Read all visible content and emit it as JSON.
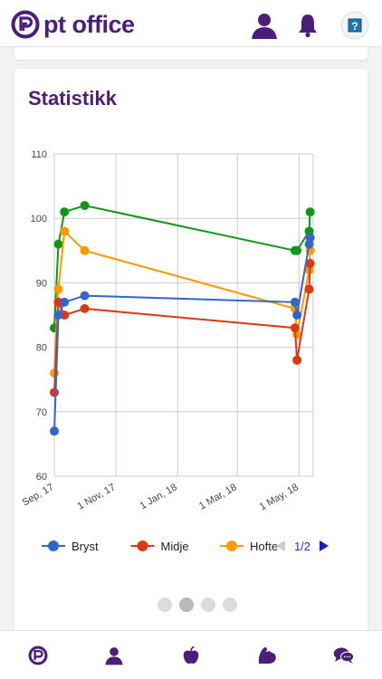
{
  "app": {
    "name": "pt office"
  },
  "icons": {
    "logo": "pt-office-logo-icon",
    "profile": "user-icon",
    "notifications": "bell-icon",
    "help": "help-icon"
  },
  "card": {
    "title": "Statistikk"
  },
  "chart_data": {
    "type": "line",
    "ylim": [
      60,
      110
    ],
    "yticks": [
      60,
      70,
      80,
      90,
      100,
      110
    ],
    "xticks": [
      "Sep, 17",
      "1 Nov, 17",
      "1 Jan, 18",
      "1 Mar, 18",
      "1 May, 18"
    ],
    "series": [
      {
        "name": "Bryst",
        "color": "#3366cc",
        "x": [
          "2017-09-01",
          "2017-09-05",
          "2017-09-11",
          "2017-10-01",
          "2018-04-27",
          "2018-04-29",
          "2018-05-11",
          "2018-05-12"
        ],
        "y": [
          67,
          85,
          87,
          88,
          87,
          85,
          96,
          97
        ]
      },
      {
        "name": "Midje",
        "color": "#dc3912",
        "x": [
          "2017-09-01",
          "2017-09-05",
          "2017-09-11",
          "2017-10-01",
          "2018-04-27",
          "2018-04-29",
          "2018-05-11",
          "2018-05-12"
        ],
        "y": [
          73,
          87,
          85,
          86,
          83,
          78,
          89,
          93
        ]
      },
      {
        "name": "Hofte",
        "color": "#ff9900",
        "x": [
          "2017-09-01",
          "2017-09-05",
          "2017-09-11",
          "2017-10-01",
          "2018-04-27",
          "2018-04-29",
          "2018-05-11",
          "2018-05-12"
        ],
        "y": [
          76,
          89,
          98,
          95,
          86,
          82,
          92,
          95
        ]
      },
      {
        "name": "",
        "color": "#109618",
        "x": [
          "2017-09-01",
          "2017-09-05",
          "2017-09-11",
          "2017-10-01",
          "2018-04-27",
          "2018-04-29",
          "2018-05-11",
          "2018-05-12"
        ],
        "y": [
          83,
          96,
          101,
          102,
          95,
          95,
          98,
          101
        ]
      }
    ],
    "legend": {
      "position": "bottom",
      "page": "1/2"
    },
    "grid": true
  },
  "pager": {
    "count": 4,
    "active": 1
  },
  "bottom_nav": [
    {
      "icon": "pt-office-logo-icon"
    },
    {
      "icon": "user-icon"
    },
    {
      "icon": "apple-icon"
    },
    {
      "icon": "flexed-arm-icon"
    },
    {
      "icon": "chat-bubbles-icon"
    }
  ],
  "colors": {
    "brand": "#4d1d7a"
  }
}
